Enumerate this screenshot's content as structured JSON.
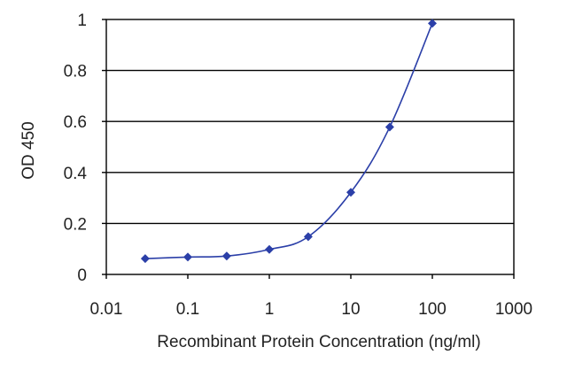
{
  "chart_data": {
    "type": "line",
    "title": "",
    "xlabel": "Recombinant Protein Concentration (ng/ml)",
    "ylabel": "OD 450",
    "x_scale": "log",
    "xlim": [
      0.01,
      1000
    ],
    "ylim": [
      0,
      1
    ],
    "x_ticks": [
      0.01,
      0.1,
      1,
      10,
      100,
      1000
    ],
    "x_tick_labels": [
      "0.01",
      "0.1",
      "1",
      "10",
      "100",
      "1000"
    ],
    "y_ticks": [
      0,
      0.2,
      0.4,
      0.6,
      0.8,
      1
    ],
    "y_tick_labels": [
      "0",
      "0.2",
      "0.4",
      "0.6",
      "0.8",
      "1"
    ],
    "grid": "horizontal",
    "legend": "none",
    "series": [
      {
        "color": "#2b3fa8",
        "points": [
          {
            "x": 0.03,
            "y": 0.062
          },
          {
            "x": 0.1,
            "y": 0.068
          },
          {
            "x": 0.3,
            "y": 0.072
          },
          {
            "x": 1,
            "y": 0.098
          },
          {
            "x": 3,
            "y": 0.148
          },
          {
            "x": 10,
            "y": 0.322
          },
          {
            "x": 30,
            "y": 0.578
          },
          {
            "x": 100,
            "y": 0.985
          }
        ]
      }
    ]
  }
}
